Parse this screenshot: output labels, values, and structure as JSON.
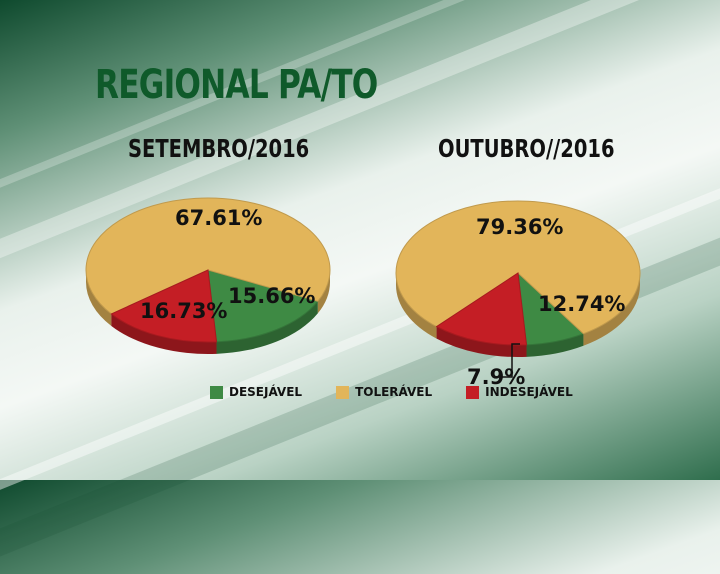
{
  "title": "REGIONAL PA/TO",
  "colors": {
    "desejavel": "#3e8a44",
    "toleravel": "#e2b55a",
    "indesejavel": "#c41e25"
  },
  "legend": [
    {
      "label": "DESEJÁVEL",
      "color": "#3e8a44"
    },
    {
      "label": "TOLERÁVEL",
      "color": "#e2b55a"
    },
    {
      "label": "INDESEJÁVEL",
      "color": "#c41e25"
    }
  ],
  "chart_data": [
    {
      "type": "pie",
      "title": "SETEMBRO/2016",
      "categories": [
        "DESEJÁVEL",
        "TOLERÁVEL",
        "INDESEJÁVEL"
      ],
      "values": [
        16.73,
        67.61,
        15.66
      ],
      "labels": [
        "16.73%",
        "67.61%",
        "15.66%"
      ]
    },
    {
      "type": "pie",
      "title": "OUTUBRO//2016",
      "categories": [
        "DESEJÁVEL",
        "TOLERÁVEL",
        "INDESEJÁVEL"
      ],
      "values": [
        7.9,
        79.36,
        12.74
      ],
      "labels": [
        "7.9%",
        "79.36%",
        "12.74%"
      ]
    }
  ]
}
